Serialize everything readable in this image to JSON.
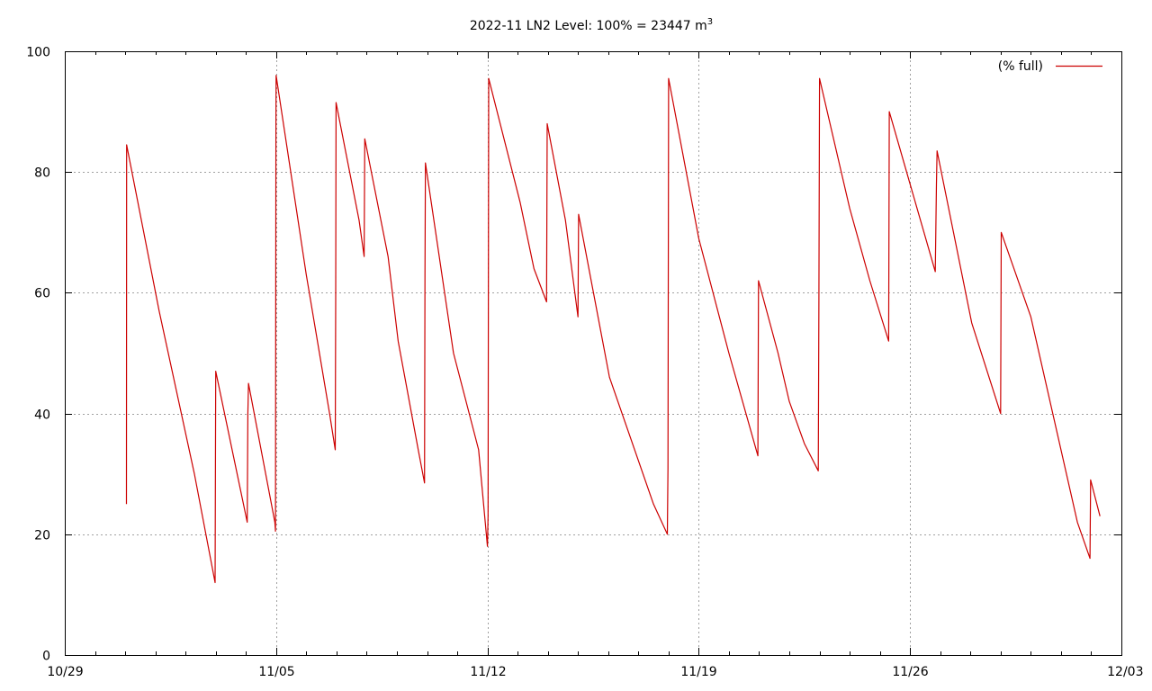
{
  "chart_data": {
    "type": "line",
    "title": "2022-11 LN2 Level: 100% = 23447 m",
    "title_superscript": "3",
    "xlabel": "",
    "ylabel": "",
    "xlim": [
      "10/29",
      "12/03"
    ],
    "ylim": [
      0,
      100
    ],
    "x_ticks": [
      "10/29",
      "11/05",
      "11/12",
      "11/19",
      "11/26",
      "12/03"
    ],
    "y_ticks": [
      "0",
      "20",
      "40",
      "60",
      "80",
      "100"
    ],
    "grid": true,
    "legend_position": "top-right",
    "series": [
      {
        "name": "(% full)",
        "color": "#cc0000",
        "points": [
          [
            "10/31 01:00",
            25
          ],
          [
            "10/31 01:05",
            53
          ],
          [
            "10/31 01:10",
            84.5
          ],
          [
            "11/01 03:00",
            57
          ],
          [
            "11/02 07:00",
            30
          ],
          [
            "11/02 23:30",
            12
          ],
          [
            "11/03 00:00",
            47
          ],
          [
            "11/04 01:00",
            22
          ],
          [
            "11/04 01:30",
            40
          ],
          [
            "11/04 02:00",
            45
          ],
          [
            "11/04 23:00",
            22
          ],
          [
            "11/04 23:30",
            20.5
          ],
          [
            "11/04 23:50",
            88
          ],
          [
            "11/05 00:00",
            96
          ],
          [
            "11/06 00:00",
            63
          ],
          [
            "11/06 18:30",
            40
          ],
          [
            "11/06 23:00",
            34
          ],
          [
            "11/06 23:20",
            59
          ],
          [
            "11/06 23:40",
            91.5
          ],
          [
            "11/07 18:00",
            72
          ],
          [
            "11/07 22:00",
            66
          ],
          [
            "11/07 22:30",
            85.5
          ],
          [
            "11/08 17:00",
            66
          ],
          [
            "11/09 01:00",
            52
          ],
          [
            "11/09 17:00",
            34
          ],
          [
            "11/09 22:00",
            28.5
          ],
          [
            "11/09 22:20",
            63
          ],
          [
            "11/09 22:40",
            81.5
          ],
          [
            "11/10 21:00",
            50
          ],
          [
            "11/11 17:00",
            34
          ],
          [
            "11/12 00:00",
            18
          ],
          [
            "11/12 00:30",
            23
          ],
          [
            "11/12 01:00",
            95.5
          ],
          [
            "11/13 02:00",
            75
          ],
          [
            "11/13 13:00",
            64
          ],
          [
            "11/13 23:00",
            58.5
          ],
          [
            "11/13 23:30",
            88
          ],
          [
            "11/14 14:00",
            72
          ],
          [
            "11/15 00:00",
            56
          ],
          [
            "11/15 00:30",
            73
          ],
          [
            "11/16 01:00",
            46
          ],
          [
            "11/17 12:00",
            25
          ],
          [
            "11/17 23:00",
            20
          ],
          [
            "11/17 23:30",
            31
          ],
          [
            "11/18 00:00",
            95.5
          ],
          [
            "11/19 00:00",
            69
          ],
          [
            "11/20 00:00",
            50
          ],
          [
            "11/20 23:00",
            33
          ],
          [
            "11/20 23:30",
            62
          ],
          [
            "11/21 15:00",
            50
          ],
          [
            "11/22 00:00",
            42
          ],
          [
            "11/22 12:00",
            35
          ],
          [
            "11/22 23:00",
            30.5
          ],
          [
            "11/22 23:30",
            59
          ],
          [
            "11/23 00:00",
            95.5
          ],
          [
            "11/24 00:00",
            74
          ],
          [
            "11/24 16:00",
            62
          ],
          [
            "11/25 07:00",
            52
          ],
          [
            "11/25 07:30",
            90
          ],
          [
            "11/26 00:00",
            78
          ],
          [
            "11/26 20:00",
            63.5
          ],
          [
            "11/26 21:00",
            78
          ],
          [
            "11/26 21:30",
            83.5
          ],
          [
            "11/28 01:00",
            55
          ],
          [
            "11/29 00:00",
            40
          ],
          [
            "11/29 00:30",
            70
          ],
          [
            "11/30 00:00",
            56
          ],
          [
            "12/01 13:00",
            22
          ],
          [
            "12/01 23:00",
            16
          ],
          [
            "12/01 23:30",
            29
          ],
          [
            "12/02 07:00",
            23
          ]
        ]
      }
    ]
  }
}
